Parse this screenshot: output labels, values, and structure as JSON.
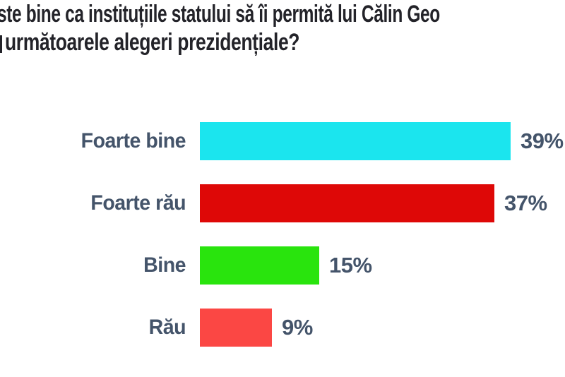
{
  "title": {
    "line1": "ste bine ca instituțiile statului să îi permită lui Călin Geo",
    "line2": "următoarele alegeri prezidențiale?"
  },
  "chart_data": {
    "type": "bar",
    "orientation": "horizontal",
    "title": "ste bine ca instituțiile statului să îi permită lui Călin Geo / următoarele alegeri prezidențiale?",
    "categories": [
      "Foarte bine",
      "Foarte rău",
      "Bine",
      "Rău"
    ],
    "values": [
      39,
      37,
      15,
      9
    ],
    "value_labels": [
      "39%",
      "37%",
      "15%",
      "9%"
    ],
    "bar_colors": [
      "#1BE5EE",
      "#DE0807",
      "#29E40D",
      "#FB4744"
    ],
    "unit": "percent",
    "xlim": [
      0,
      40
    ],
    "grid": false,
    "legend": false,
    "value_label_position": "right-of-bar"
  },
  "colors": {
    "background": "#FFFFFF",
    "title_text": "#232329",
    "label_text": "#44546A"
  }
}
